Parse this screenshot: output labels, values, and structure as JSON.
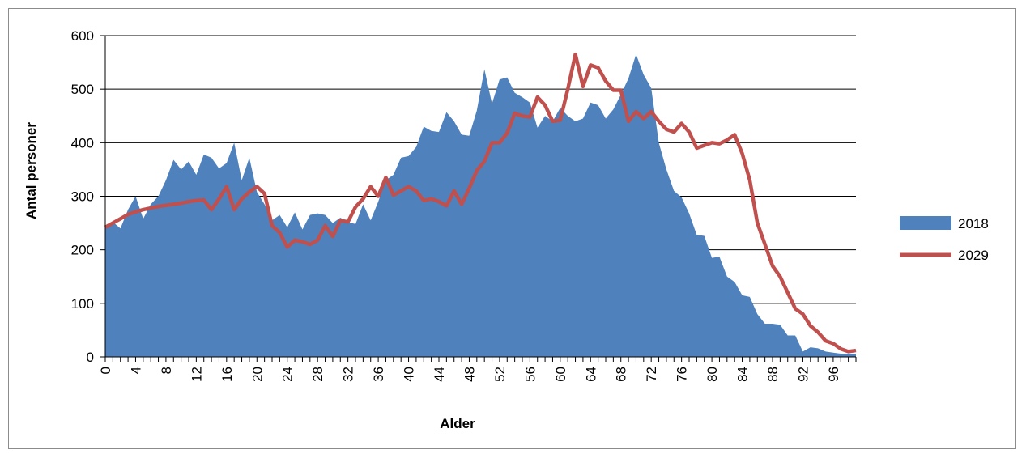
{
  "chart_data": {
    "type": "area",
    "xlabel": "Alder",
    "ylabel": "Antal personer",
    "ylim": [
      0,
      600
    ],
    "yticks": [
      0,
      100,
      200,
      300,
      400,
      500,
      600
    ],
    "xlim": [
      0,
      99
    ],
    "xticks": [
      0,
      4,
      8,
      12,
      16,
      20,
      24,
      28,
      32,
      36,
      40,
      44,
      48,
      52,
      56,
      60,
      64,
      68,
      72,
      76,
      80,
      84,
      88,
      92,
      96
    ],
    "grid": true,
    "legend_position": "right",
    "x": [
      0,
      1,
      2,
      3,
      4,
      5,
      6,
      7,
      8,
      9,
      10,
      11,
      12,
      13,
      14,
      15,
      16,
      17,
      18,
      19,
      20,
      21,
      22,
      23,
      24,
      25,
      26,
      27,
      28,
      29,
      30,
      31,
      32,
      33,
      34,
      35,
      36,
      37,
      38,
      39,
      40,
      41,
      42,
      43,
      44,
      45,
      46,
      47,
      48,
      49,
      50,
      51,
      52,
      53,
      54,
      55,
      56,
      57,
      58,
      59,
      60,
      61,
      62,
      63,
      64,
      65,
      66,
      67,
      68,
      69,
      70,
      71,
      72,
      73,
      74,
      75,
      76,
      77,
      78,
      79,
      80,
      81,
      82,
      83,
      84,
      85,
      86,
      87,
      88,
      89,
      90,
      91,
      92,
      93,
      94,
      95,
      96,
      97,
      98,
      99
    ],
    "series": [
      {
        "name": "2018",
        "kind": "area",
        "color": "#4f81bd",
        "values": [
          240,
          252,
          240,
          275,
          300,
          258,
          285,
          300,
          330,
          368,
          350,
          365,
          340,
          378,
          372,
          352,
          362,
          400,
          330,
          372,
          308,
          285,
          255,
          265,
          242,
          270,
          238,
          265,
          268,
          265,
          250,
          260,
          252,
          248,
          285,
          255,
          290,
          330,
          340,
          372,
          375,
          392,
          430,
          422,
          420,
          457,
          440,
          415,
          413,
          460,
          537,
          473,
          518,
          522,
          493,
          485,
          475,
          428,
          450,
          440,
          465,
          450,
          440,
          445,
          475,
          470,
          445,
          462,
          490,
          520,
          565,
          527,
          502,
          400,
          350,
          310,
          298,
          268,
          228,
          226,
          185,
          187,
          150,
          140,
          115,
          112,
          80,
          62,
          62,
          60,
          40,
          40,
          10,
          18,
          16,
          10,
          8,
          6,
          6,
          6
        ]
      },
      {
        "name": "2029",
        "kind": "line",
        "color": "#c0504d",
        "values": [
          242,
          250,
          258,
          266,
          271,
          275,
          278,
          281,
          283,
          285,
          287,
          290,
          292,
          293,
          275,
          295,
          318,
          275,
          295,
          308,
          318,
          305,
          245,
          232,
          205,
          218,
          215,
          210,
          218,
          245,
          225,
          255,
          252,
          280,
          295,
          318,
          300,
          335,
          302,
          310,
          318,
          310,
          292,
          295,
          290,
          282,
          310,
          285,
          315,
          348,
          365,
          400,
          400,
          418,
          455,
          450,
          448,
          485,
          470,
          440,
          442,
          500,
          565,
          505,
          545,
          540,
          515,
          498,
          498,
          440,
          458,
          445,
          458,
          440,
          425,
          420,
          436,
          420,
          390,
          395,
          400,
          398,
          405,
          415,
          380,
          330,
          250,
          210,
          170,
          150,
          120,
          90,
          80,
          58,
          46,
          30,
          25,
          15,
          10,
          12
        ]
      }
    ]
  }
}
